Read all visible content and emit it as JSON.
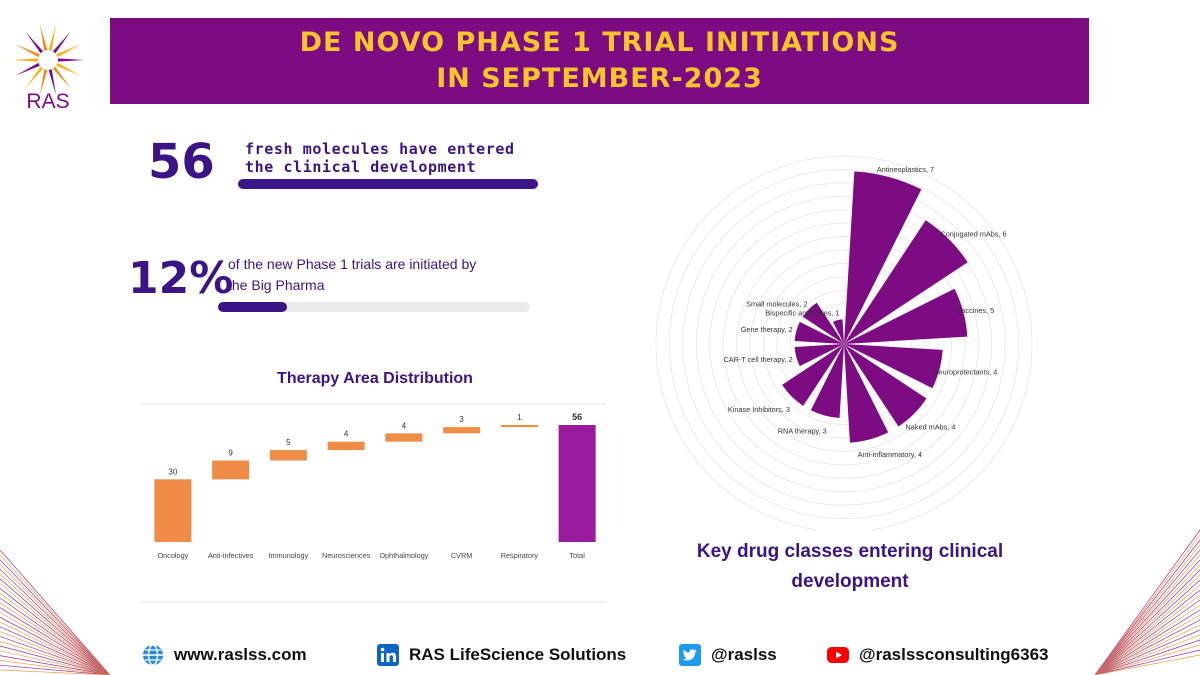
{
  "header": {
    "logo_text": "RAS",
    "title_line1": "DE NOVO PHASE 1 TRIAL INITIATIONS",
    "title_line2": "IN SEPTEMBER-2023"
  },
  "stats": {
    "molecules": {
      "value": "56",
      "text": "fresh molecules have entered the clinical development",
      "progress": 1.0
    },
    "big_pharma": {
      "value": "12%",
      "text": "of the new Phase 1 trials are initiated by the Big Pharma",
      "progress": 0.22
    }
  },
  "colors": {
    "purple": "#7d0c83",
    "indigo": "#3b1485",
    "orange": "#ef8c47",
    "total": "#9a1b9e",
    "gold": "#f5c52a"
  },
  "chart_data": [
    {
      "type": "waterfall",
      "title": "Therapy Area Distribution",
      "categories": [
        "Oncology",
        "Anti-infectives",
        "Immunology",
        "Neurosciences",
        "Ophthalmology",
        "CVRM",
        "Respiratory",
        "Total"
      ],
      "values": [
        30,
        9,
        5,
        4,
        4,
        3,
        1,
        56
      ],
      "total_label": "Total",
      "ylim": [
        0,
        70
      ]
    },
    {
      "type": "polar_bar",
      "title": "Key drug classes entering clinical development",
      "categories": [
        "Antineoplastics",
        "Conjugated mAbs",
        "Vaccines",
        "Neuroprotectants",
        "Naked mAbs",
        "Anti-inflammatory",
        "RNA therapy",
        "Kinase Inhibitors",
        "CAR-T cell therapy",
        "Gene therapy",
        "Small molecules",
        "Bispecific antibodies"
      ],
      "values": [
        7,
        6,
        5,
        4,
        4,
        4,
        3,
        3,
        2,
        2,
        2,
        1
      ],
      "rmax": 7
    }
  ],
  "footer": {
    "website": "www.raslss.com",
    "linkedin": "RAS LifeScience Solutions",
    "twitter": "@raslss",
    "youtube": "@raslssconsulting6363"
  }
}
